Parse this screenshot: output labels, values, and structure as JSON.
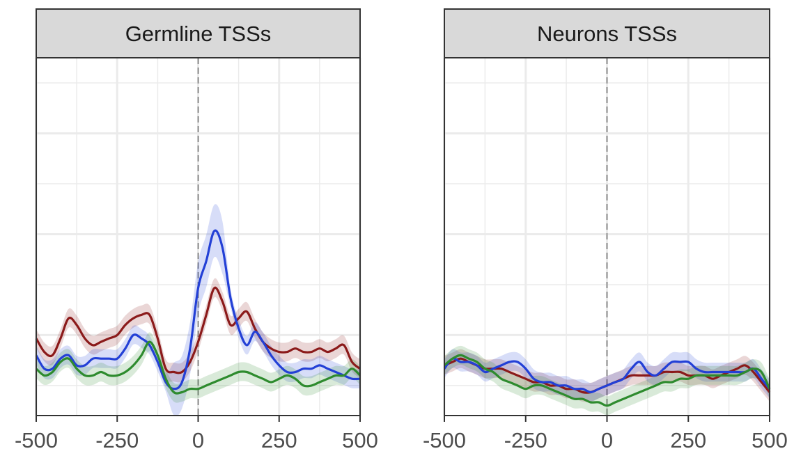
{
  "chart_data": [
    {
      "type": "line",
      "title": "Germline TSSs",
      "xlim": [
        -500,
        500
      ],
      "x_ticks": [
        -500,
        -250,
        0,
        250,
        500
      ],
      "x_tick_labels": [
        "-500",
        "-250",
        "0",
        "250",
        "500"
      ],
      "ylim": [
        0,
        1
      ],
      "grid": true,
      "vline_x": 0,
      "series": [
        {
          "color": "#8b1a1a",
          "x": [
            -500,
            -475,
            -450,
            -425,
            -400,
            -375,
            -350,
            -325,
            -300,
            -275,
            -250,
            -225,
            -200,
            -175,
            -150,
            -125,
            -100,
            -75,
            -50,
            -25,
            0,
            25,
            50,
            75,
            100,
            125,
            150,
            175,
            200,
            225,
            250,
            275,
            300,
            325,
            350,
            375,
            400,
            425,
            450,
            475,
            500
          ],
          "y": [
            0.19,
            0.15,
            0.14,
            0.19,
            0.25,
            0.23,
            0.19,
            0.17,
            0.18,
            0.19,
            0.2,
            0.23,
            0.25,
            0.26,
            0.26,
            0.19,
            0.1,
            0.09,
            0.09,
            0.12,
            0.18,
            0.26,
            0.34,
            0.3,
            0.23,
            0.25,
            0.27,
            0.22,
            0.18,
            0.16,
            0.15,
            0.15,
            0.16,
            0.15,
            0.15,
            0.16,
            0.15,
            0.16,
            0.17,
            0.12,
            0.1
          ]
        },
        {
          "color": "#2340d6",
          "x": [
            -500,
            -475,
            -450,
            -425,
            -400,
            -375,
            -350,
            -325,
            -300,
            -275,
            -250,
            -225,
            -200,
            -175,
            -150,
            -125,
            -100,
            -75,
            -50,
            -25,
            0,
            25,
            50,
            75,
            100,
            125,
            150,
            175,
            200,
            225,
            250,
            275,
            300,
            325,
            350,
            375,
            400,
            425,
            450,
            475,
            500
          ],
          "y": [
            0.14,
            0.1,
            0.1,
            0.13,
            0.14,
            0.11,
            0.11,
            0.13,
            0.13,
            0.13,
            0.13,
            0.16,
            0.2,
            0.19,
            0.17,
            0.12,
            0.06,
            0.04,
            0.06,
            0.16,
            0.34,
            0.42,
            0.51,
            0.46,
            0.31,
            0.22,
            0.17,
            0.21,
            0.18,
            0.14,
            0.11,
            0.09,
            0.09,
            0.1,
            0.1,
            0.11,
            0.1,
            0.09,
            0.08,
            0.07,
            0.07
          ]
        },
        {
          "color": "#2e8b2e",
          "x": [
            -500,
            -475,
            -450,
            -425,
            -400,
            -375,
            -350,
            -325,
            -300,
            -275,
            -250,
            -225,
            -200,
            -175,
            -150,
            -125,
            -100,
            -75,
            -50,
            -25,
            0,
            25,
            50,
            75,
            100,
            125,
            150,
            175,
            200,
            225,
            250,
            275,
            300,
            325,
            350,
            375,
            400,
            425,
            450,
            475,
            500
          ],
          "y": [
            0.1,
            0.08,
            0.09,
            0.12,
            0.13,
            0.1,
            0.08,
            0.08,
            0.09,
            0.08,
            0.08,
            0.09,
            0.11,
            0.14,
            0.18,
            0.14,
            0.07,
            0.03,
            0.03,
            0.04,
            0.04,
            0.05,
            0.06,
            0.07,
            0.08,
            0.09,
            0.09,
            0.08,
            0.07,
            0.06,
            0.07,
            0.08,
            0.07,
            0.05,
            0.05,
            0.06,
            0.07,
            0.08,
            0.08,
            0.1,
            0.08
          ]
        }
      ]
    },
    {
      "type": "line",
      "title": "Neurons TSSs",
      "xlim": [
        -500,
        500
      ],
      "x_ticks": [
        -500,
        -250,
        0,
        250,
        500
      ],
      "x_tick_labels": [
        "-500",
        "-250",
        "0",
        "250",
        "500"
      ],
      "ylim": [
        0,
        1
      ],
      "grid": true,
      "vline_x": 0,
      "series": [
        {
          "color": "#8b1a1a",
          "x": [
            -500,
            -475,
            -450,
            -425,
            -400,
            -375,
            -350,
            -325,
            -300,
            -275,
            -250,
            -225,
            -200,
            -175,
            -150,
            -125,
            -100,
            -75,
            -50,
            -25,
            0,
            25,
            50,
            75,
            100,
            125,
            150,
            175,
            200,
            225,
            250,
            275,
            300,
            325,
            350,
            375,
            400,
            425,
            450,
            475,
            500
          ],
          "y": [
            0.11,
            0.12,
            0.13,
            0.12,
            0.11,
            0.1,
            0.1,
            0.1,
            0.09,
            0.08,
            0.07,
            0.06,
            0.06,
            0.05,
            0.05,
            0.04,
            0.04,
            0.03,
            0.03,
            0.04,
            0.05,
            0.06,
            0.07,
            0.08,
            0.08,
            0.08,
            0.08,
            0.09,
            0.09,
            0.09,
            0.08,
            0.08,
            0.08,
            0.07,
            0.08,
            0.09,
            0.1,
            0.11,
            0.09,
            0.06,
            0.03
          ]
        },
        {
          "color": "#2340d6",
          "x": [
            -500,
            -475,
            -450,
            -425,
            -400,
            -375,
            -350,
            -325,
            -300,
            -275,
            -250,
            -225,
            -200,
            -175,
            -150,
            -125,
            -100,
            -75,
            -50,
            -25,
            0,
            25,
            50,
            75,
            100,
            125,
            150,
            175,
            200,
            225,
            250,
            275,
            300,
            325,
            350,
            375,
            400,
            425,
            450,
            475,
            500
          ],
          "y": [
            0.1,
            0.13,
            0.12,
            0.12,
            0.11,
            0.09,
            0.1,
            0.11,
            0.12,
            0.12,
            0.1,
            0.07,
            0.06,
            0.06,
            0.05,
            0.05,
            0.04,
            0.04,
            0.03,
            0.04,
            0.05,
            0.06,
            0.07,
            0.1,
            0.12,
            0.09,
            0.08,
            0.1,
            0.12,
            0.12,
            0.12,
            0.1,
            0.09,
            0.09,
            0.09,
            0.09,
            0.09,
            0.09,
            0.1,
            0.07,
            0.04
          ]
        },
        {
          "color": "#2e8b2e",
          "x": [
            -500,
            -475,
            -450,
            -425,
            -400,
            -375,
            -350,
            -325,
            -300,
            -275,
            -250,
            -225,
            -200,
            -175,
            -150,
            -125,
            -100,
            -75,
            -50,
            -25,
            0,
            25,
            50,
            75,
            100,
            125,
            150,
            175,
            200,
            225,
            250,
            275,
            300,
            325,
            350,
            375,
            400,
            425,
            450,
            475,
            500
          ],
          "y": [
            0.11,
            0.13,
            0.14,
            0.13,
            0.12,
            0.1,
            0.09,
            0.07,
            0.06,
            0.05,
            0.04,
            0.05,
            0.05,
            0.04,
            0.03,
            0.02,
            0.01,
            0.01,
            0.0,
            0.0,
            -0.01,
            0.0,
            0.01,
            0.02,
            0.03,
            0.04,
            0.05,
            0.06,
            0.06,
            0.07,
            0.07,
            0.08,
            0.08,
            0.08,
            0.08,
            0.08,
            0.08,
            0.09,
            0.1,
            0.09,
            0.04
          ]
        }
      ]
    }
  ]
}
